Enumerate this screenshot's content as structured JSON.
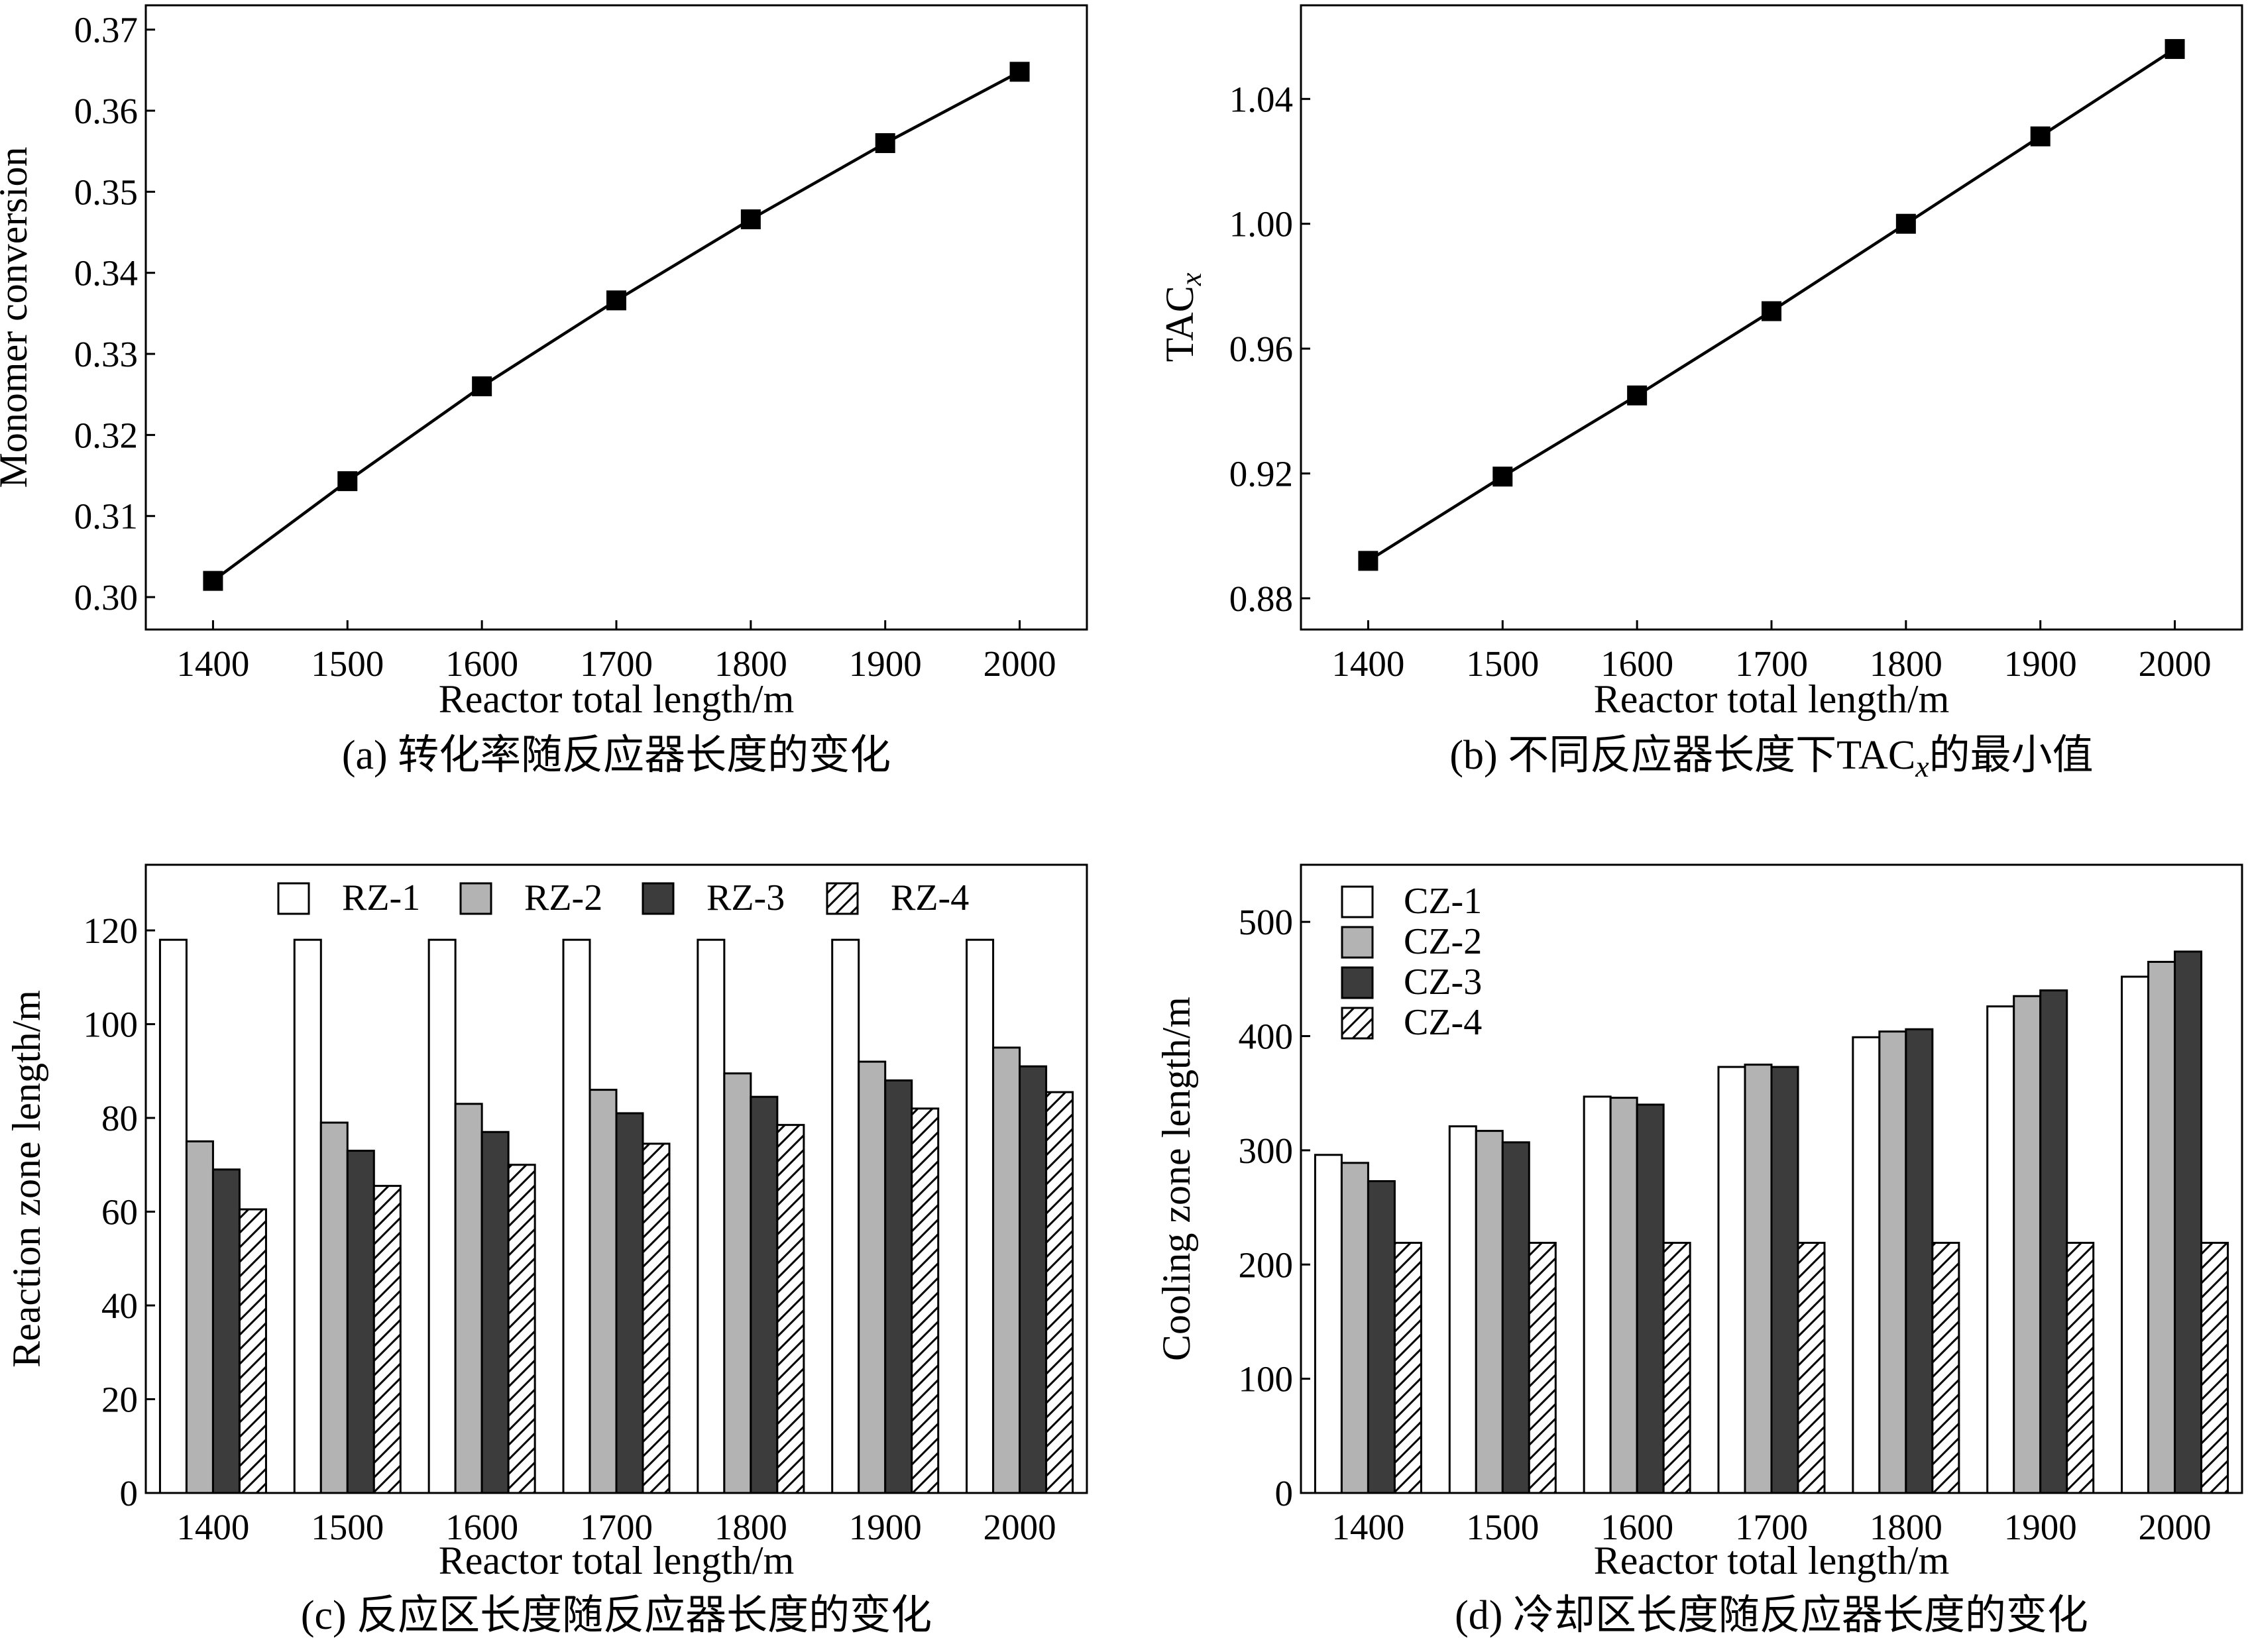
{
  "chart_data": [
    {
      "id": "a",
      "type": "line",
      "caption": "(a) 转化率随反应器长度的变化",
      "xlabel": "Reactor total length/m",
      "ylabel": "Monomer conversion",
      "x": [
        1400,
        1500,
        1600,
        1700,
        1800,
        1900,
        2000
      ],
      "series": [
        {
          "values": [
            0.302,
            0.3143,
            0.326,
            0.3366,
            0.3466,
            0.356,
            0.3648
          ]
        }
      ],
      "xlim": [
        1350,
        2050
      ],
      "ylim": [
        0.296,
        0.373
      ],
      "xticks": [
        "1400",
        "1500",
        "1600",
        "1700",
        "1800",
        "1900",
        "2000"
      ],
      "yticks": [
        "0.30",
        "0.31",
        "0.32",
        "0.33",
        "0.34",
        "0.35",
        "0.36",
        "0.37"
      ],
      "ytick_values": [
        0.3,
        0.31,
        0.32,
        0.33,
        0.34,
        0.35,
        0.36,
        0.37
      ],
      "marker": "square",
      "grid": false
    },
    {
      "id": "b",
      "type": "line",
      "caption": "(b) 不同反应器长度下TACx的最小值",
      "xlabel": "Reactor total length/m",
      "ylabel": "TACx",
      "x": [
        1400,
        1500,
        1600,
        1700,
        1800,
        1900,
        2000
      ],
      "series": [
        {
          "values": [
            0.892,
            0.919,
            0.945,
            0.972,
            1.0,
            1.028,
            1.056
          ]
        }
      ],
      "xlim": [
        1350,
        2050
      ],
      "ylim": [
        0.87,
        1.07
      ],
      "xticks": [
        "1400",
        "1500",
        "1600",
        "1700",
        "1800",
        "1900",
        "2000"
      ],
      "yticks": [
        "0.88",
        "0.92",
        "0.96",
        "1.00",
        "1.04"
      ],
      "ytick_values": [
        0.88,
        0.92,
        0.96,
        1.0,
        1.04
      ],
      "marker": "square",
      "grid": false
    },
    {
      "id": "c",
      "type": "bar",
      "caption": "(c) 反应区长度随反应器长度的变化",
      "xlabel": "Reactor total length/m",
      "ylabel": "Reaction zone length/m",
      "categories": [
        "1400",
        "1500",
        "1600",
        "1700",
        "1800",
        "1900",
        "2000"
      ],
      "series": [
        {
          "name": "RZ-1",
          "style": "white",
          "values": [
            118,
            118,
            118,
            118,
            118,
            118,
            118
          ]
        },
        {
          "name": "RZ-2",
          "style": "lightgray",
          "values": [
            75,
            79,
            83,
            86,
            89.5,
            92,
            95
          ]
        },
        {
          "name": "RZ-3",
          "style": "darkgray",
          "values": [
            69,
            73,
            77,
            81,
            84.5,
            88,
            91
          ]
        },
        {
          "name": "RZ-4",
          "style": "hatched",
          "values": [
            60.5,
            65.5,
            70,
            74.5,
            78.5,
            82,
            85.5
          ]
        }
      ],
      "ylim": [
        0,
        134
      ],
      "yticks": [
        "0",
        "20",
        "40",
        "60",
        "80",
        "100",
        "120"
      ],
      "ytick_values": [
        0,
        20,
        40,
        60,
        80,
        100,
        120
      ],
      "legend": "top",
      "grid": false
    },
    {
      "id": "d",
      "type": "bar",
      "caption": "(d) 冷却区长度随反应器长度的变化",
      "xlabel": "Reactor total length/m",
      "ylabel": "Cooling zone length/m",
      "categories": [
        "1400",
        "1500",
        "1600",
        "1700",
        "1800",
        "1900",
        "2000"
      ],
      "series": [
        {
          "name": "CZ-1",
          "style": "white",
          "values": [
            296,
            321,
            347,
            373,
            399,
            426,
            452
          ]
        },
        {
          "name": "CZ-2",
          "style": "lightgray",
          "values": [
            289,
            317,
            346,
            375,
            404,
            435,
            465
          ]
        },
        {
          "name": "CZ-3",
          "style": "darkgray",
          "values": [
            273,
            307,
            340,
            373,
            406,
            440,
            474
          ]
        },
        {
          "name": "CZ-4",
          "style": "hatched",
          "values": [
            219,
            219,
            219,
            219,
            219,
            219,
            219
          ]
        }
      ],
      "ylim": [
        0,
        550
      ],
      "yticks": [
        "0",
        "100",
        "200",
        "300",
        "400",
        "500"
      ],
      "ytick_values": [
        0,
        100,
        200,
        300,
        400,
        500
      ],
      "legend": "top-left",
      "grid": false
    }
  ],
  "colors": {
    "white": "#ffffff",
    "lightgray": "#b3b3b3",
    "darkgray": "#3c3c3c",
    "line": "#000000"
  }
}
